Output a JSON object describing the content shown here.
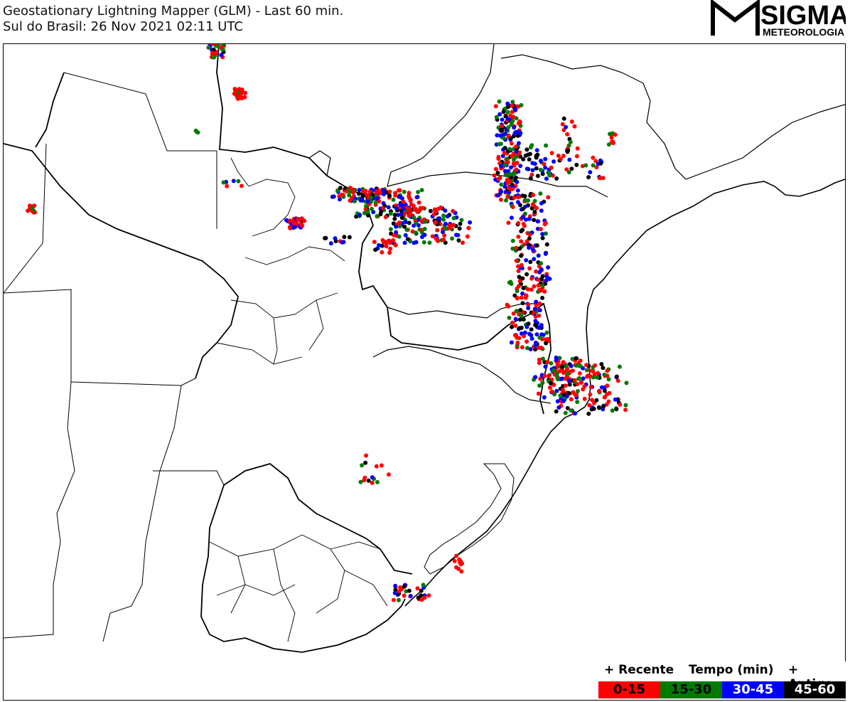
{
  "header": {
    "title_line1": "Geostationary Lightning Mapper (GLM) - Last 60 min.",
    "title_line2": "Sul do Brasil:  26 Nov 2021 02:11 UTC"
  },
  "logo": {
    "name": "SIGMA",
    "subtitle": "METEOROLOGIA",
    "icon": "sigma-m-logo"
  },
  "legend": {
    "recent_label": "+ Recente",
    "time_label": "Tempo (min)",
    "old_label": "+ Antigo",
    "bins": [
      {
        "label": "0-15",
        "color": "#ff0000",
        "text_color": "#000000"
      },
      {
        "label": "15-30",
        "color": "#007a00",
        "text_color": "#000000"
      },
      {
        "label": "30-45",
        "color": "#0000ff",
        "text_color": "#ffffff"
      },
      {
        "label": "45-60",
        "color": "#000000",
        "text_color": "#ffffff"
      }
    ]
  },
  "colors": {
    "red": "#ff0000",
    "green": "#007a00",
    "blue": "#0000ff",
    "black": "#000000"
  }
}
